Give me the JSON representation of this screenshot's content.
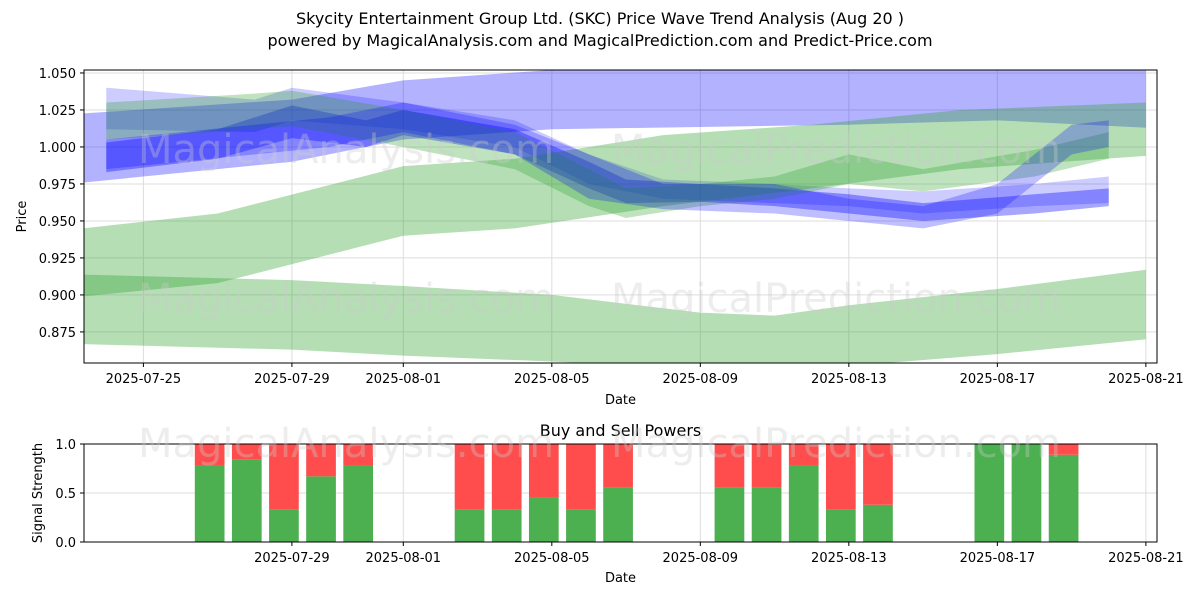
{
  "title": "Skycity Entertainment Group Ltd. (SKC) Price Wave Trend Analysis (Aug 20 )",
  "subtitle": "powered by MagicalAnalysis.com and MagicalPrediction.com and Predict-Price.com",
  "watermarks": [
    "MagicalAnalysis.com",
    "MagicalPrediction.com"
  ],
  "colors": {
    "blue": "#0000ff",
    "green": "#2ca02c",
    "buy": "#4caf50",
    "sell": "#ff4d4d",
    "grid": "#dddddd"
  },
  "chart_data": [
    {
      "type": "area",
      "xlabel": "Date",
      "ylabel": "Price",
      "ylim": [
        0.854,
        1.052
      ],
      "xlim_days": [
        "2025-07-23",
        "2025-08-21"
      ],
      "x_ticks": [
        "2025-07-25",
        "2025-07-29",
        "2025-08-01",
        "2025-08-05",
        "2025-08-09",
        "2025-08-13",
        "2025-08-17",
        "2025-08-21"
      ],
      "y_ticks": [
        "0.875",
        "0.900",
        "0.925",
        "0.950",
        "0.975",
        "1.000",
        "1.025",
        "1.050"
      ],
      "grid": true,
      "series": [
        {
          "color": "blue",
          "opacity": 0.3,
          "x": [
            "2025-07-23",
            "2025-07-29",
            "2025-08-01",
            "2025-08-05",
            "2025-08-13",
            "2025-08-17",
            "2025-08-21"
          ],
          "upper": [
            1.022,
            1.032,
            1.045,
            1.052,
            1.052,
            1.052,
            1.052
          ],
          "lower": [
            0.975,
            0.99,
            1.005,
            1.012,
            1.015,
            1.018,
            1.013
          ]
        },
        {
          "color": "blue",
          "opacity": 0.35,
          "x": [
            "2025-07-24",
            "2025-07-27",
            "2025-07-29",
            "2025-07-31",
            "2025-08-01",
            "2025-08-04",
            "2025-08-06",
            "2025-08-07",
            "2025-08-09",
            "2025-08-11",
            "2025-08-13",
            "2025-08-15",
            "2025-08-18",
            "2025-08-20"
          ],
          "upper": [
            1.003,
            1.012,
            1.028,
            1.018,
            1.025,
            1.012,
            0.99,
            0.978,
            0.975,
            0.972,
            0.968,
            0.962,
            0.968,
            0.972
          ],
          "lower": [
            0.983,
            0.992,
            1.006,
            1.0,
            1.008,
            0.995,
            0.972,
            0.962,
            0.963,
            0.96,
            0.955,
            0.95,
            0.955,
            0.96
          ]
        },
        {
          "color": "blue",
          "opacity": 0.2,
          "x": [
            "2025-07-24",
            "2025-07-28",
            "2025-07-29",
            "2025-08-01",
            "2025-08-04",
            "2025-08-06",
            "2025-08-08",
            "2025-08-11",
            "2025-08-13",
            "2025-08-15",
            "2025-08-18",
            "2025-08-20"
          ],
          "upper": [
            1.04,
            1.032,
            1.04,
            1.03,
            1.018,
            0.995,
            0.978,
            0.975,
            0.972,
            0.97,
            0.975,
            0.98
          ],
          "lower": [
            1.012,
            1.01,
            1.018,
            1.012,
            1.0,
            0.975,
            0.965,
            0.962,
            0.96,
            0.955,
            0.96,
            0.962
          ]
        },
        {
          "color": "green",
          "opacity": 0.35,
          "x": [
            "2025-07-23",
            "2025-07-27",
            "2025-08-01",
            "2025-08-04",
            "2025-08-08",
            "2025-08-12",
            "2025-08-16",
            "2025-08-21"
          ],
          "upper": [
            0.944,
            0.955,
            0.987,
            0.992,
            1.008,
            1.015,
            1.025,
            1.03
          ],
          "lower": [
            0.898,
            0.908,
            0.94,
            0.945,
            0.96,
            0.972,
            0.985,
            0.994
          ]
        },
        {
          "color": "green",
          "opacity": 0.35,
          "x": [
            "2025-07-23",
            "2025-07-29",
            "2025-08-01",
            "2025-08-05",
            "2025-08-09",
            "2025-08-11",
            "2025-08-13",
            "2025-08-17",
            "2025-08-21"
          ],
          "upper": [
            0.914,
            0.91,
            0.906,
            0.9,
            0.888,
            0.886,
            0.893,
            0.904,
            0.917
          ],
          "lower": [
            0.867,
            0.863,
            0.859,
            0.855,
            0.85,
            0.849,
            0.852,
            0.86,
            0.87
          ]
        },
        {
          "color": "green",
          "opacity": 0.3,
          "x": [
            "2025-07-24",
            "2025-07-28",
            "2025-07-29",
            "2025-08-01",
            "2025-08-04",
            "2025-08-06",
            "2025-08-07",
            "2025-08-09",
            "2025-08-11",
            "2025-08-13",
            "2025-08-15",
            "2025-08-18",
            "2025-08-20"
          ],
          "upper": [
            1.03,
            1.036,
            1.038,
            1.025,
            1.01,
            0.985,
            0.972,
            0.975,
            0.98,
            0.995,
            0.985,
            0.998,
            1.01
          ],
          "lower": [
            1.005,
            1.012,
            1.014,
            1.0,
            0.985,
            0.96,
            0.952,
            0.96,
            0.965,
            0.975,
            0.97,
            0.98,
            0.992
          ]
        },
        {
          "color": "blue",
          "opacity": 0.25,
          "x": [
            "2025-07-24",
            "2025-07-28",
            "2025-07-30",
            "2025-08-01",
            "2025-08-04",
            "2025-08-06",
            "2025-08-08",
            "2025-08-11",
            "2025-08-13",
            "2025-08-15",
            "2025-08-17",
            "2025-08-19",
            "2025-08-20"
          ],
          "upper": [
            1.005,
            1.015,
            1.02,
            1.03,
            1.015,
            0.995,
            0.975,
            0.975,
            0.965,
            0.96,
            0.975,
            1.015,
            1.018
          ],
          "lower": [
            0.985,
            0.995,
            1.0,
            1.01,
            0.995,
            0.965,
            0.958,
            0.955,
            0.95,
            0.945,
            0.955,
            0.995,
            1.0
          ]
        }
      ]
    },
    {
      "type": "bar",
      "title": "Buy and Sell Powers",
      "xlabel": "Date",
      "ylabel": "Signal Strength",
      "ylim": [
        0,
        1
      ],
      "y_ticks": [
        "0.0",
        "0.5",
        "1.0"
      ],
      "x_ticks": [
        "2025-07-29",
        "2025-08-01",
        "2025-08-05",
        "2025-08-09",
        "2025-08-13",
        "2025-08-17",
        "2025-08-21"
      ],
      "grid": true,
      "categories": [
        "2025-07-27",
        "2025-07-28",
        "2025-07-29",
        "2025-07-30",
        "2025-07-31",
        "2025-08-03",
        "2025-08-04",
        "2025-08-05",
        "2025-08-06",
        "2025-08-07",
        "2025-08-10",
        "2025-08-11",
        "2025-08-12",
        "2025-08-13",
        "2025-08-14",
        "2025-08-17",
        "2025-08-18",
        "2025-08-19"
      ],
      "series": [
        {
          "name": "buy",
          "values": [
            0.78,
            0.84,
            0.33,
            0.67,
            0.78,
            0.33,
            0.33,
            0.45,
            0.33,
            0.56,
            0.56,
            0.56,
            0.78,
            0.33,
            0.38,
            1.0,
            1.0,
            0.89
          ]
        },
        {
          "name": "sell",
          "values": [
            0.22,
            0.16,
            0.67,
            0.33,
            0.22,
            0.67,
            0.67,
            0.55,
            0.67,
            0.44,
            0.44,
            0.44,
            0.22,
            0.67,
            0.62,
            0.0,
            0.0,
            0.11
          ]
        }
      ]
    }
  ]
}
